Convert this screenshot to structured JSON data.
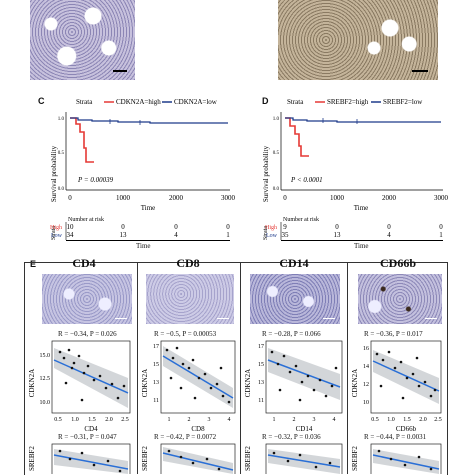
{
  "panels": {
    "C": {
      "letter": "C",
      "strata_label": "Strata",
      "legend": [
        "CDKN2A=high",
        "CDKN2A=low"
      ],
      "ylabel": "Survival probability",
      "xlabel": "Time",
      "xticks": [
        "0",
        "1000",
        "2000",
        "3000"
      ],
      "yticks": [
        "0.0",
        "0.5",
        "1.0"
      ],
      "pvalue": "P = 0.00039",
      "risk_title": "Number at risk",
      "risk_strata": "Strata",
      "risk_groups": [
        "High",
        "Low"
      ],
      "risk_high": [
        "10",
        "0",
        "0",
        "0"
      ],
      "risk_low": [
        "34",
        "13",
        "4",
        "1"
      ],
      "risk_xlabel": "Time"
    },
    "D": {
      "letter": "D",
      "strata_label": "Strata",
      "legend": [
        "SREBF2=high",
        "SREBF2=low"
      ],
      "ylabel": "Survival probability",
      "xlabel": "Time",
      "xticks": [
        "0",
        "1000",
        "2000",
        "3000"
      ],
      "yticks": [
        "0.0",
        "0.5",
        "1.0"
      ],
      "pvalue": "P < 0.0001",
      "risk_title": "Number at risk",
      "risk_strata": "Strata",
      "risk_groups": [
        "High",
        "Low"
      ],
      "risk_high": [
        "9",
        "0",
        "0",
        "0"
      ],
      "risk_low": [
        "35",
        "13",
        "4",
        "1"
      ],
      "risk_xlabel": "Time"
    },
    "E": {
      "letter": "E",
      "columns": [
        {
          "title": "CD4",
          "r1": "R = −0.34, P = 0.026",
          "x1label": "CD4",
          "y1label": "CDKN2A",
          "x1ticks": [
            "0.5",
            "1.0",
            "1.5",
            "2.0",
            "2.5"
          ],
          "y1ticks": [
            "15.0",
            "12.5",
            "10.0"
          ],
          "r2": "R = −0.31, P = 0.047",
          "y2label": "SREBF2"
        },
        {
          "title": "CD8",
          "r1": "R = −0.5, P = 0.00053",
          "x1label": "CD8",
          "y1label": "CDKN2A",
          "x1ticks": [
            "1",
            "2",
            "3",
            "4"
          ],
          "y1ticks": [
            "17",
            "15",
            "13",
            "11"
          ],
          "r2": "R = −0.42, P = 0.0072",
          "y2label": "SREBF2"
        },
        {
          "title": "CD14",
          "r1": "R = −0.28, P = 0.066",
          "x1label": "CD14",
          "y1label": "CDKN2A",
          "x1ticks": [
            "1",
            "2",
            "3",
            "4"
          ],
          "y1ticks": [
            "17",
            "15",
            "13",
            "11"
          ],
          "r2": "R = −0.32, P = 0.036",
          "y2label": "SREBF2"
        },
        {
          "title": "CD66b",
          "r1": "R = −0.36, P = 0.017",
          "x1label": "CD66b",
          "y1label": "CDKN2A",
          "x1ticks": [
            "0.5",
            "1.0",
            "1.5",
            "2.0",
            "2.5"
          ],
          "y1ticks": [
            "16",
            "14",
            "12",
            "10"
          ],
          "r2": "R = −0.44, P = 0.0031",
          "y2label": "SREBF2"
        }
      ]
    }
  },
  "chart_data": [
    {
      "type": "line",
      "title": "",
      "xlabel": "Time",
      "ylabel": "Survival probability",
      "xlim": [
        0,
        3000
      ],
      "ylim": [
        0,
        1
      ],
      "series": [
        {
          "name": "CDKN2A=high",
          "color": "#e53935",
          "points": [
            [
              0,
              1.0
            ],
            [
              120,
              0.9
            ],
            [
              200,
              0.8
            ],
            [
              300,
              0.6
            ],
            [
              350,
              0.4
            ],
            [
              450,
              0.4
            ]
          ]
        },
        {
          "name": "CDKN2A=low",
          "color": "#1e3a8a",
          "points": [
            [
              0,
              1.0
            ],
            [
              150,
              0.97
            ],
            [
              400,
              0.95
            ],
            [
              900,
              0.93
            ],
            [
              1500,
              0.91
            ],
            [
              3000,
              0.91
            ]
          ]
        }
      ],
      "annotations": [
        "P = 0.00039"
      ]
    },
    {
      "type": "line",
      "title": "",
      "xlabel": "Time",
      "ylabel": "Survival probability",
      "xlim": [
        0,
        3000
      ],
      "ylim": [
        0,
        1
      ],
      "series": [
        {
          "name": "SREBF2=high",
          "color": "#e53935",
          "points": [
            [
              0,
              1.0
            ],
            [
              100,
              0.88
            ],
            [
              200,
              0.75
            ],
            [
              280,
              0.6
            ],
            [
              330,
              0.45
            ],
            [
              450,
              0.45
            ]
          ]
        },
        {
          "name": "SREBF2=low",
          "color": "#1e3a8a",
          "points": [
            [
              0,
              1.0
            ],
            [
              150,
              0.97
            ],
            [
              400,
              0.95
            ],
            [
              900,
              0.94
            ],
            [
              1500,
              0.93
            ],
            [
              3000,
              0.93
            ]
          ]
        }
      ],
      "annotations": [
        "P < 0.0001"
      ]
    }
  ],
  "colors": {
    "high": "#e53935",
    "low": "#1e3a8a",
    "regression": "#2a6fd6",
    "ci_band": "#c8ccd0",
    "ihc_tissue": "#b9b2cf",
    "ihc_background": "#f3f0f6"
  }
}
